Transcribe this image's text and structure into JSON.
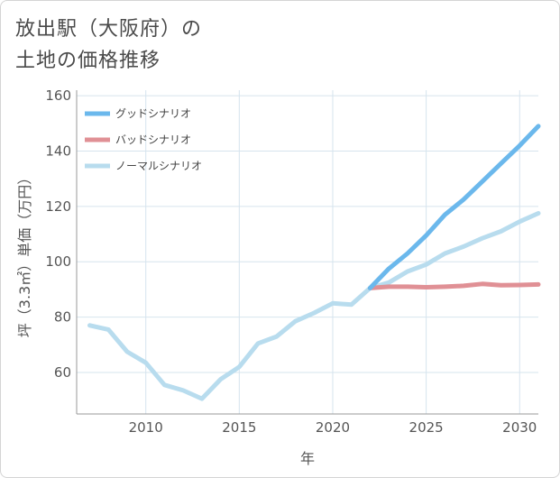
{
  "title_line1": "放出駅（大阪府）の",
  "title_line2": "土地の価格推移",
  "chart_data": {
    "type": "line",
    "xlabel": "年",
    "ylabel": "坪（3.3㎡）単価（万円）",
    "xlim": [
      2006.3,
      2031
    ],
    "ylim": [
      45,
      162
    ],
    "xticks": [
      2010,
      2015,
      2020,
      2025,
      2030
    ],
    "yticks": [
      60,
      80,
      100,
      120,
      140,
      160
    ],
    "grid": true,
    "legend_position": "top-left",
    "series": [
      {
        "name": "グッドシナリオ",
        "color": "#6bb8ec",
        "x": [
          2022,
          2023,
          2024,
          2025,
          2026,
          2027,
          2028,
          2029,
          2030,
          2031
        ],
        "y": [
          90.5,
          97.5,
          103,
          109.5,
          117,
          122.5,
          129,
          135.5,
          142,
          149
        ]
      },
      {
        "name": "バッドシナリオ",
        "color": "#e09095",
        "x": [
          2022,
          2023,
          2024,
          2025,
          2026,
          2027,
          2028,
          2029,
          2030,
          2031
        ],
        "y": [
          90.5,
          91,
          91,
          90.8,
          91,
          91.3,
          92,
          91.5,
          91.6,
          91.8
        ]
      },
      {
        "name": "ノーマルシナリオ",
        "color": "#b8dcee",
        "x": [
          2007,
          2008,
          2009,
          2010,
          2011,
          2012,
          2013,
          2014,
          2015,
          2016,
          2017,
          2018,
          2019,
          2020,
          2021,
          2022,
          2023,
          2024,
          2025,
          2026,
          2027,
          2028,
          2029,
          2030,
          2031
        ],
        "y": [
          77,
          75.5,
          67.5,
          63.5,
          55.5,
          53.5,
          50.5,
          57.5,
          62,
          70.5,
          73,
          78.5,
          81.5,
          85,
          84.5,
          90.5,
          92.5,
          96.5,
          99,
          103,
          105.5,
          108.5,
          111,
          114.5,
          117.5
        ]
      }
    ]
  }
}
